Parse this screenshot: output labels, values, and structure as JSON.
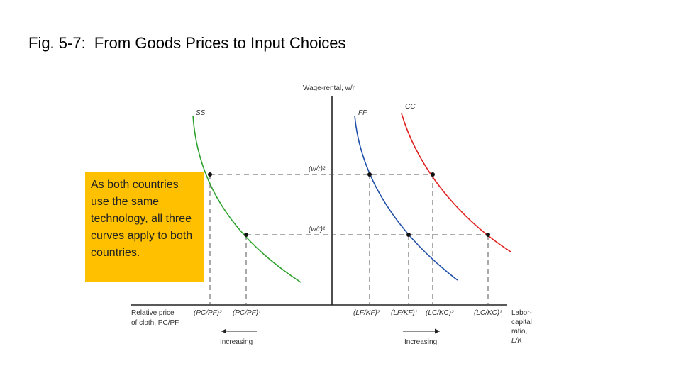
{
  "title": "Fig. 5-7:  From Goods Prices to Input Choices",
  "callout": "As both countries use the same technology, all three curves apply to both countries.",
  "y_axis_label": "Wage-rental, w/r",
  "curves": {
    "ss": "SS",
    "ff": "FF",
    "cc": "CC"
  },
  "wage_levels": {
    "level2": "(w/r)²",
    "level1": "(w/r)¹"
  },
  "left_axis": {
    "label_line1": "Relative price",
    "label_line2": "of cloth, PC/PF",
    "tick2": "(PC/PF)²",
    "tick1": "(PC/PF)¹",
    "arrow_label": "Increasing"
  },
  "right_axis": {
    "label_line1": "Labor-",
    "label_line2": "capital",
    "label_line3": "ratio,",
    "label_line4": "L/K",
    "tick_f2": "(LF/KF)²",
    "tick_f1": "(LF/KF)¹",
    "tick_c2": "(LC/KC)²",
    "tick_c1": "(LC/KC)¹",
    "arrow_label": "Increasing"
  },
  "colors": {
    "ss": "#2ca02c",
    "ff": "#1f4fa8",
    "cc": "#e02020",
    "callout": "#ffc000"
  }
}
